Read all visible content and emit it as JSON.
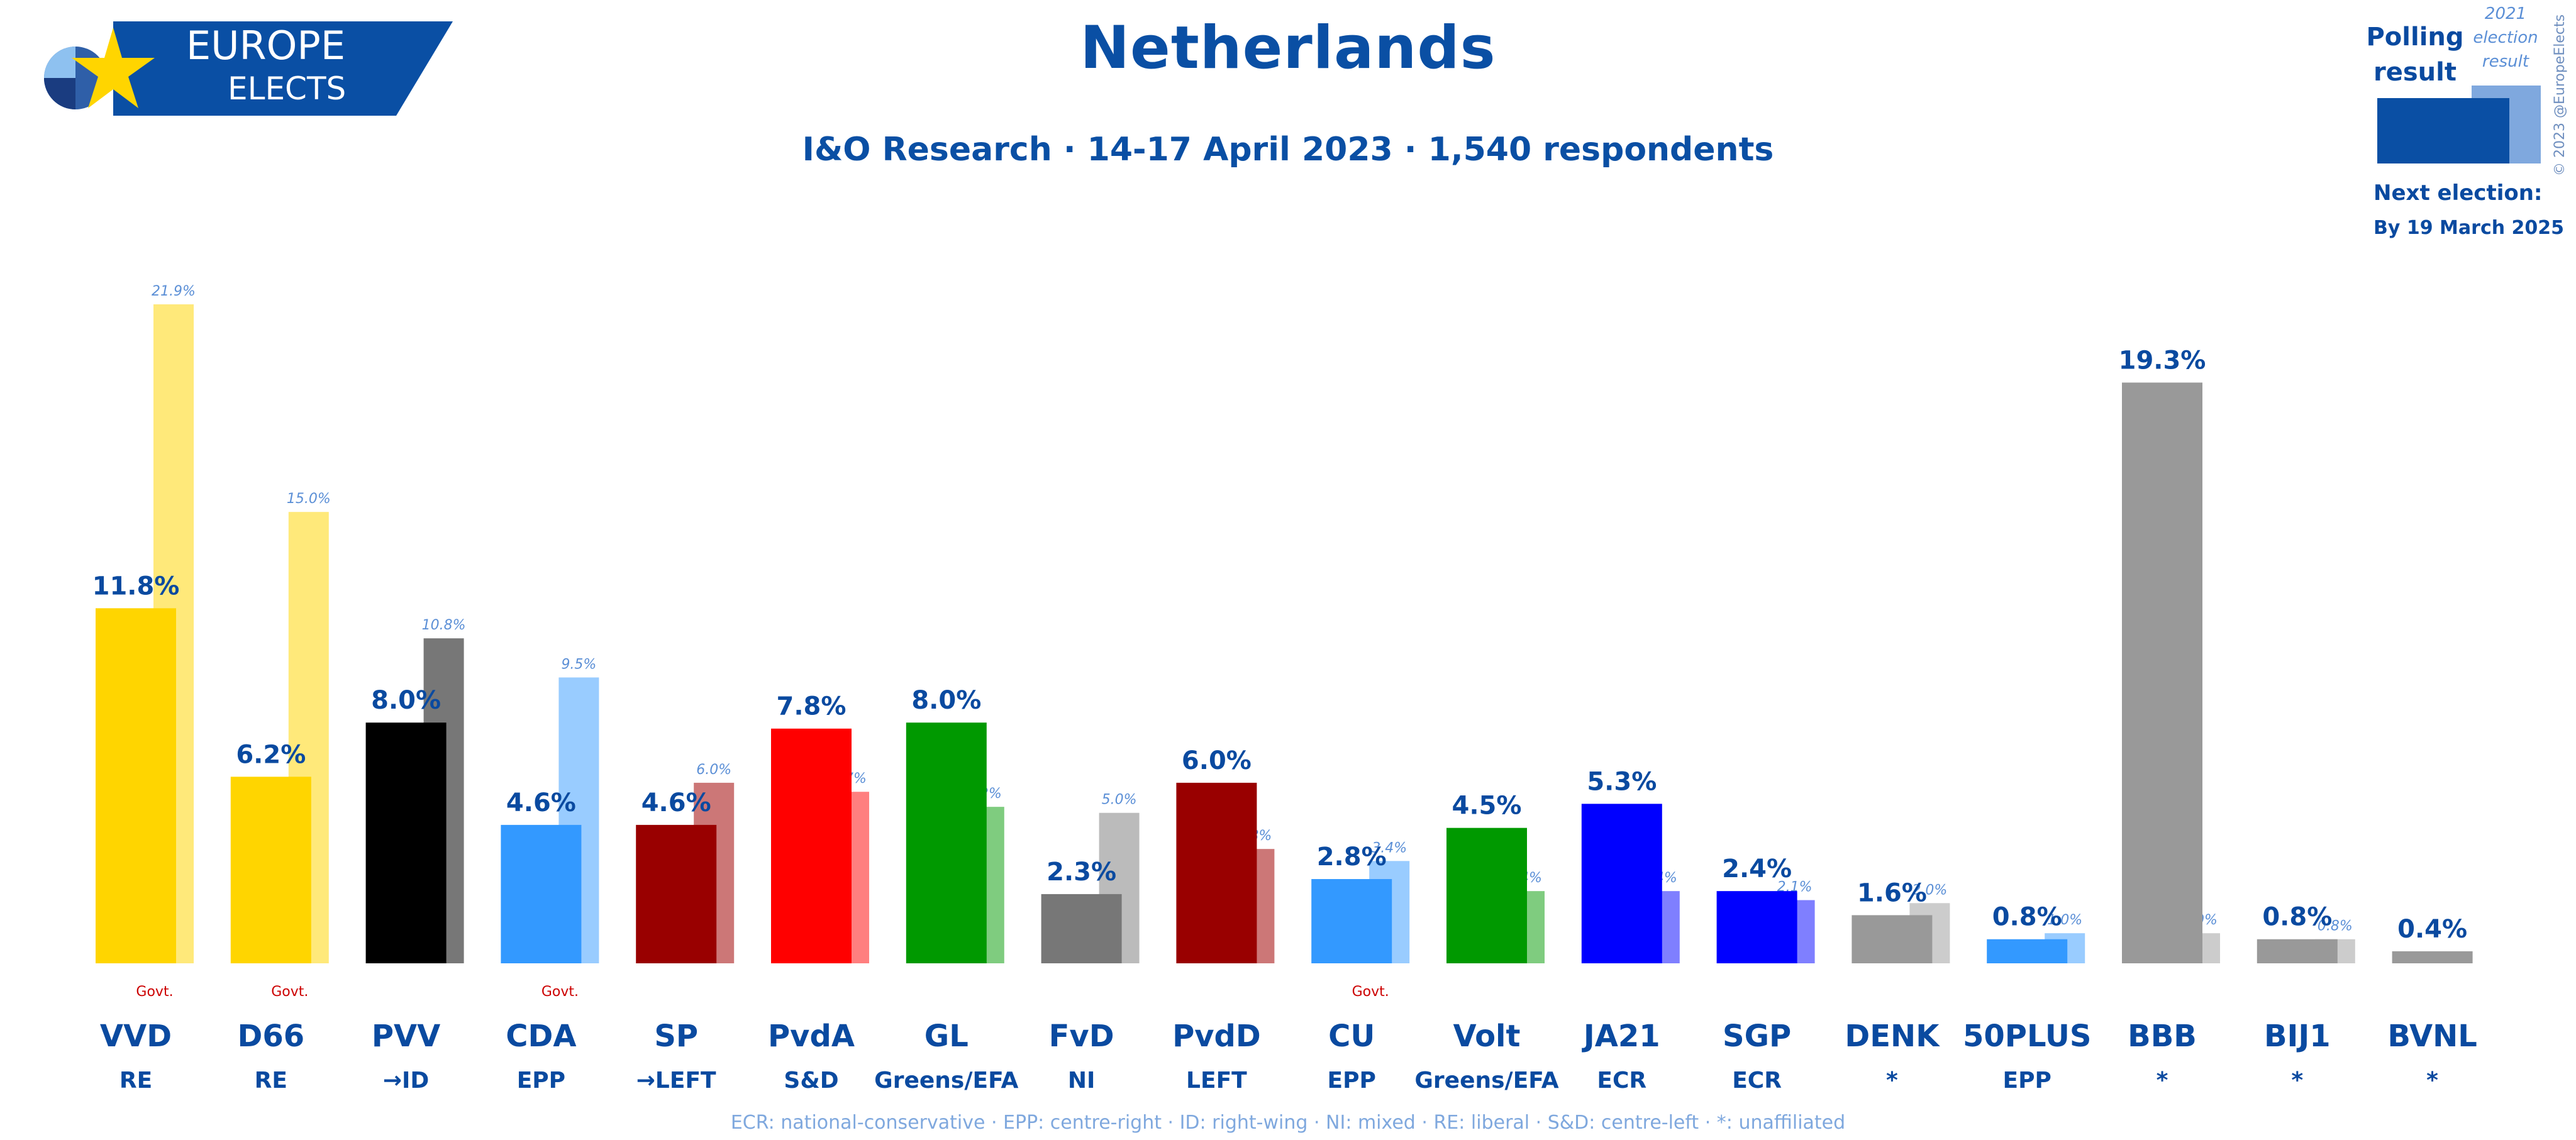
{
  "header": {
    "brand_line1": "EUROPE",
    "brand_line2": "ELECTS",
    "title": "Netherlands",
    "subtitle": "I&O Research · 14-17 April 2023 · 1,540 respondents"
  },
  "legend": {
    "polling_label_1": "Polling",
    "polling_label_2": "result",
    "result_label_1": "2021",
    "result_label_2": "election",
    "result_label_3": "result",
    "next_election_label": "Next election:",
    "next_election_date": "By 19 March 2025",
    "copyright": "© 2023 @EuropeElects"
  },
  "colors": {
    "brand_blue": "#0a4fa4",
    "light_blue": "#7fa8de",
    "govt_red": "#cc0000"
  },
  "chart_data": {
    "type": "bar",
    "title": "Netherlands",
    "subtitle": "I&O Research · 14-17 April 2023 · 1,540 respondents",
    "unit": "%",
    "ylim": [
      0,
      21.9
    ],
    "grid": false,
    "series": [
      {
        "name": "Polling result",
        "values": [
          11.8,
          6.2,
          8.0,
          4.6,
          4.6,
          7.8,
          8.0,
          2.3,
          6.0,
          2.8,
          4.5,
          5.3,
          2.4,
          1.6,
          0.8,
          19.3,
          0.8,
          0.4
        ]
      },
      {
        "name": "2021 election result",
        "values": [
          21.9,
          15.0,
          10.8,
          9.5,
          6.0,
          5.7,
          5.2,
          5.0,
          3.8,
          3.4,
          2.4,
          2.4,
          2.1,
          2.0,
          1.0,
          1.0,
          0.8,
          null
        ]
      }
    ],
    "parties": [
      {
        "name": "VVD",
        "group": "RE",
        "poll": "11.8%",
        "result": "21.9%",
        "govt": "Govt.",
        "color": "#ffd500",
        "light": "#ffe97a"
      },
      {
        "name": "D66",
        "group": "RE",
        "poll": "6.2%",
        "result": "15.0%",
        "govt": "Govt.",
        "color": "#ffd500",
        "light": "#ffe97a"
      },
      {
        "name": "PVV",
        "group": "→ID",
        "poll": "8.0%",
        "result": "10.8%",
        "govt": "",
        "color": "#000000",
        "light": "#777777"
      },
      {
        "name": "CDA",
        "group": "EPP",
        "poll": "4.6%",
        "result": "9.5%",
        "govt": "Govt.",
        "color": "#3399ff",
        "light": "#99ccff"
      },
      {
        "name": "SP",
        "group": "→LEFT",
        "poll": "4.6%",
        "result": "6.0%",
        "govt": "",
        "color": "#990000",
        "light": "#cc7777"
      },
      {
        "name": "PvdA",
        "group": "S&D",
        "poll": "7.8%",
        "result": "5.7%",
        "govt": "",
        "color": "#ff0000",
        "light": "#ff7f7f"
      },
      {
        "name": "GL",
        "group": "Greens/EFA",
        "poll": "8.0%",
        "result": "5.2%",
        "govt": "",
        "color": "#009900",
        "light": "#7fcc7f"
      },
      {
        "name": "FvD",
        "group": "NI",
        "poll": "2.3%",
        "result": "5.0%",
        "govt": "",
        "color": "#777777",
        "light": "#bbbbbb"
      },
      {
        "name": "PvdD",
        "group": "LEFT",
        "poll": "6.0%",
        "result": "3.8%",
        "govt": "",
        "color": "#990000",
        "light": "#cc7777"
      },
      {
        "name": "CU",
        "group": "EPP",
        "poll": "2.8%",
        "result": "3.4%",
        "govt": "Govt.",
        "color": "#3399ff",
        "light": "#99ccff"
      },
      {
        "name": "Volt",
        "group": "Greens/EFA",
        "poll": "4.5%",
        "result": "2.4%",
        "govt": "",
        "color": "#009900",
        "light": "#7fcc7f"
      },
      {
        "name": "JA21",
        "group": "ECR",
        "poll": "5.3%",
        "result": "2.4%",
        "govt": "",
        "color": "#0000ff",
        "light": "#7f7fff"
      },
      {
        "name": "SGP",
        "group": "ECR",
        "poll": "2.4%",
        "result": "2.1%",
        "govt": "",
        "color": "#0000ff",
        "light": "#7f7fff"
      },
      {
        "name": "DENK",
        "group": "*",
        "poll": "1.6%",
        "result": "2.0%",
        "govt": "",
        "color": "#999999",
        "light": "#cccccc"
      },
      {
        "name": "50PLUS",
        "group": "EPP",
        "poll": "0.8%",
        "result": "1.0%",
        "govt": "",
        "color": "#3399ff",
        "light": "#99ccff"
      },
      {
        "name": "BBB",
        "group": "*",
        "poll": "19.3%",
        "result": "1.0%",
        "govt": "",
        "color": "#999999",
        "light": "#cccccc"
      },
      {
        "name": "BIJ1",
        "group": "*",
        "poll": "0.8%",
        "result": "0.8%",
        "govt": "",
        "color": "#999999",
        "light": "#cccccc"
      },
      {
        "name": "BVNL",
        "group": "*",
        "poll": "0.4%",
        "result": "",
        "govt": "",
        "color": "#999999",
        "light": "#cccccc"
      }
    ]
  },
  "footnote": "ECR: national-conservative · EPP: centre-right · ID: right-wing · NI: mixed · RE: liberal · S&D: centre-left · *: unaffiliated"
}
